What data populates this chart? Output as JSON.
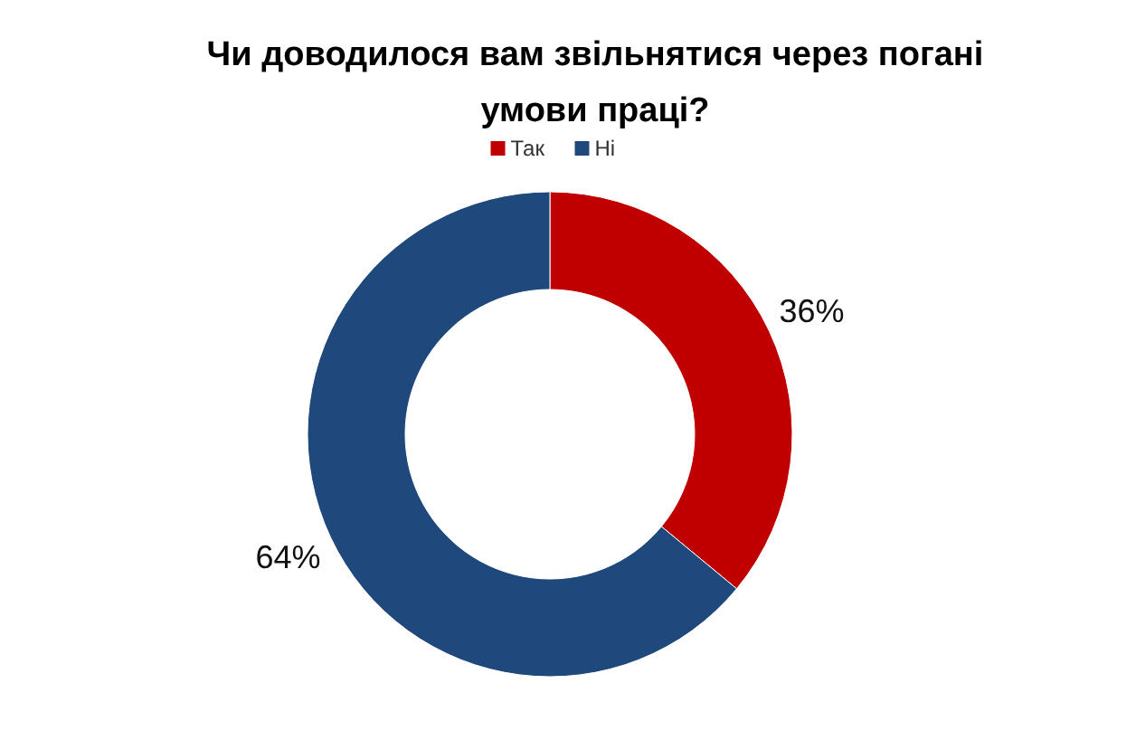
{
  "chart_data": {
    "type": "donut",
    "title": "Чи доводилося вам звільнятися через погані умови праці?",
    "categories": [
      "Так",
      "Ні"
    ],
    "values": [
      36,
      64
    ],
    "colors": [
      "#c00000",
      "#1f497d"
    ],
    "value_labels": [
      "36%",
      "64%"
    ],
    "legend": "top"
  }
}
